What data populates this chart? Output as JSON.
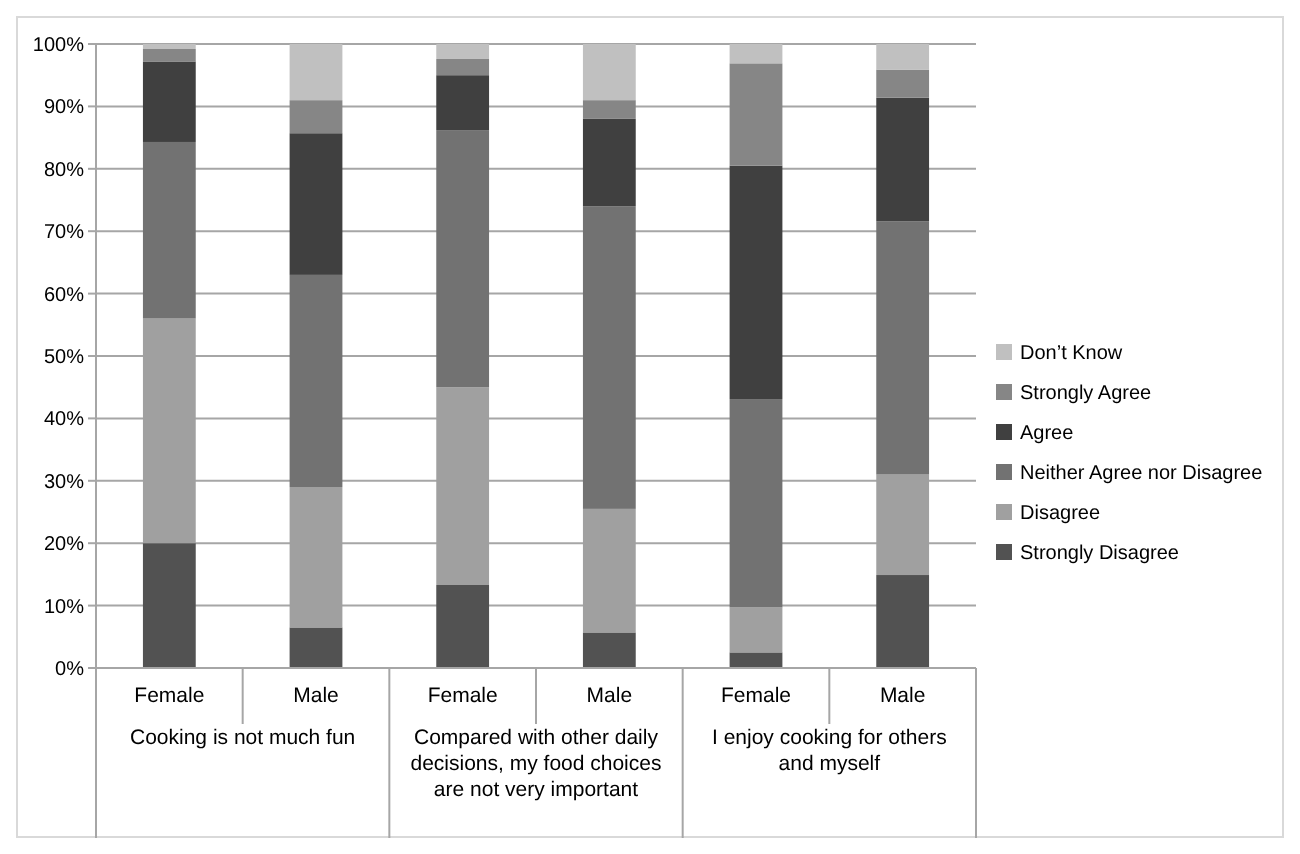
{
  "chart_data": {
    "type": "bar",
    "stacked": true,
    "categories": [
      "Female",
      "Male",
      "Female",
      "Male",
      "Female",
      "Male"
    ],
    "series": [
      {
        "name": "Strongly Disagree",
        "color": "#525252",
        "values": [
          20,
          6.5,
          13.3,
          5.7,
          2.5,
          14.9
        ]
      },
      {
        "name": "Disagree",
        "color": "#a0a0a0",
        "values": [
          36,
          22.5,
          31.7,
          19.8,
          7.2,
          16.1
        ]
      },
      {
        "name": "Neither Agree nor Disagree",
        "color": "#727272",
        "values": [
          28.3,
          34,
          41.2,
          48.5,
          33.4,
          40.6
        ]
      },
      {
        "name": "Agree",
        "color": "#404040",
        "values": [
          12.9,
          22.7,
          8.8,
          14,
          37.4,
          19.8
        ]
      },
      {
        "name": "Strongly Agree",
        "color": "#868686",
        "values": [
          2,
          5.3,
          2.6,
          3,
          16.4,
          4.5
        ]
      },
      {
        "name": "Don’t Know",
        "color": "#c0c0c0",
        "values": [
          0.8,
          9,
          2.4,
          9,
          3.1,
          4.1
        ]
      }
    ],
    "ylim": [
      0,
      100
    ],
    "yticks": [
      {
        "value": 0,
        "label": "0%"
      },
      {
        "value": 10,
        "label": "10%"
      },
      {
        "value": 20,
        "label": "20%"
      },
      {
        "value": 30,
        "label": "30%"
      },
      {
        "value": 40,
        "label": "40%"
      },
      {
        "value": 50,
        "label": "50%"
      },
      {
        "value": 60,
        "label": "60%"
      },
      {
        "value": 70,
        "label": "70%"
      },
      {
        "value": 80,
        "label": "80%"
      },
      {
        "value": 90,
        "label": "90%"
      },
      {
        "value": 100,
        "label": "100%"
      }
    ],
    "grid": "y",
    "legend": "right",
    "annotations": [
      "Cooking is not much fun",
      "Compared with other daily decisions, my food choices are not very important",
      "I enjoy cooking for others and myself"
    ]
  }
}
